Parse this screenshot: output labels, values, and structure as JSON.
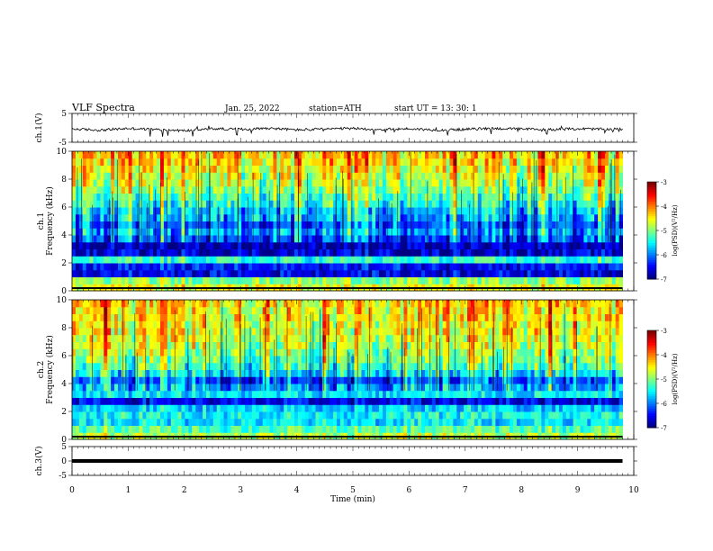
{
  "header": {
    "title": "VLF  Spectra",
    "date": "Jan. 25, 2022",
    "station": "station=ATH",
    "start": "start  UT  =   13: 30: 1"
  },
  "chart_data": [
    {
      "type": "line",
      "name": "ch1-voltage",
      "ylabel": "ch.1(V)",
      "ylim": [
        -5,
        5
      ],
      "y_ticks": [
        "5",
        "-5"
      ],
      "x": [
        0,
        0.5,
        1,
        1.5,
        2,
        2.5,
        3,
        3.5,
        4,
        4.5,
        5,
        5.5,
        6,
        6.5,
        7,
        7.5,
        8,
        8.5,
        9,
        9.5,
        9.8
      ],
      "y": [
        -0.4,
        -0.8,
        -0.2,
        -0.6,
        -1.0,
        -0.3,
        -0.5,
        -0.1,
        -0.7,
        -0.4,
        -0.2,
        -0.6,
        -0.3,
        -0.8,
        -0.5,
        -0.2,
        -0.4,
        -0.6,
        -0.3,
        -0.5,
        -0.4
      ]
    },
    {
      "type": "heatmap",
      "name": "ch1-spectrogram",
      "ylabel": "ch.1\nFrequency  (kHz)",
      "ylim": [
        0,
        10
      ],
      "y_ticks": [
        "0",
        "2",
        "4",
        "6",
        "8",
        "10"
      ],
      "colorbar": {
        "label": "log(PSD)(V²/Hz)",
        "range": [
          -7,
          -3
        ],
        "ticks": [
          "-3",
          "-4",
          "-5",
          "-6",
          "-7"
        ]
      },
      "freq_profile_log_psd": [
        {
          "f_khz": 0.25,
          "value": -4.6
        },
        {
          "f_khz": 0.75,
          "value": -5.0
        },
        {
          "f_khz": 1.25,
          "value": -6.6
        },
        {
          "f_khz": 1.75,
          "value": -6.5
        },
        {
          "f_khz": 2.25,
          "value": -5.4
        },
        {
          "f_khz": 2.75,
          "value": -6.7
        },
        {
          "f_khz": 3.25,
          "value": -6.8
        },
        {
          "f_khz": 3.75,
          "value": -6.3
        },
        {
          "f_khz": 4.25,
          "value": -6.0
        },
        {
          "f_khz": 4.75,
          "value": -6.2
        },
        {
          "f_khz": 5.25,
          "value": -5.9
        },
        {
          "f_khz": 5.75,
          "value": -5.8
        },
        {
          "f_khz": 6.25,
          "value": -5.5
        },
        {
          "f_khz": 6.75,
          "value": -5.3
        },
        {
          "f_khz": 7.25,
          "value": -5.1
        },
        {
          "f_khz": 7.75,
          "value": -4.9
        },
        {
          "f_khz": 8.25,
          "value": -4.8
        },
        {
          "f_khz": 8.75,
          "value": -4.6
        },
        {
          "f_khz": 9.25,
          "value": -4.5
        },
        {
          "f_khz": 9.75,
          "value": -4.4
        }
      ]
    },
    {
      "type": "heatmap",
      "name": "ch2-spectrogram",
      "ylabel": "ch.2\nFrequency  (kHz)",
      "ylim": [
        0,
        10
      ],
      "y_ticks": [
        "0",
        "2",
        "4",
        "6",
        "8",
        "10"
      ],
      "colorbar": {
        "label": "log(PSD)(V²/Hz)",
        "range": [
          -7,
          -3
        ],
        "ticks": [
          "-3",
          "-4",
          "-5",
          "-6",
          "-7"
        ]
      },
      "freq_profile_log_psd": [
        {
          "f_khz": 0.25,
          "value": -4.8
        },
        {
          "f_khz": 0.75,
          "value": -5.2
        },
        {
          "f_khz": 1.25,
          "value": -5.6
        },
        {
          "f_khz": 1.75,
          "value": -5.5
        },
        {
          "f_khz": 2.25,
          "value": -5.7
        },
        {
          "f_khz": 2.75,
          "value": -6.6
        },
        {
          "f_khz": 3.25,
          "value": -5.6
        },
        {
          "f_khz": 3.75,
          "value": -5.9
        },
        {
          "f_khz": 4.25,
          "value": -6.2
        },
        {
          "f_khz": 4.75,
          "value": -5.6
        },
        {
          "f_khz": 5.25,
          "value": -5.3
        },
        {
          "f_khz": 5.75,
          "value": -5.1
        },
        {
          "f_khz": 6.25,
          "value": -4.9
        },
        {
          "f_khz": 6.75,
          "value": -4.8
        },
        {
          "f_khz": 7.25,
          "value": -4.7
        },
        {
          "f_khz": 7.75,
          "value": -4.6
        },
        {
          "f_khz": 8.25,
          "value": -4.6
        },
        {
          "f_khz": 8.75,
          "value": -4.5
        },
        {
          "f_khz": 9.25,
          "value": -4.5
        },
        {
          "f_khz": 9.75,
          "value": -4.4
        }
      ]
    },
    {
      "type": "line",
      "name": "ch3-voltage",
      "ylabel": "ch.3(V)",
      "ylim": [
        -5,
        5
      ],
      "y_ticks": [
        "5",
        "0",
        "-5"
      ],
      "x": [
        0,
        9.8
      ],
      "y": [
        0,
        0
      ]
    }
  ],
  "x_axis": {
    "label": "Time  (min)",
    "range": [
      0,
      10
    ],
    "ticks": [
      "0",
      "1",
      "2",
      "3",
      "4",
      "5",
      "6",
      "7",
      "8",
      "9",
      "10"
    ]
  },
  "data_end_min": 9.8
}
